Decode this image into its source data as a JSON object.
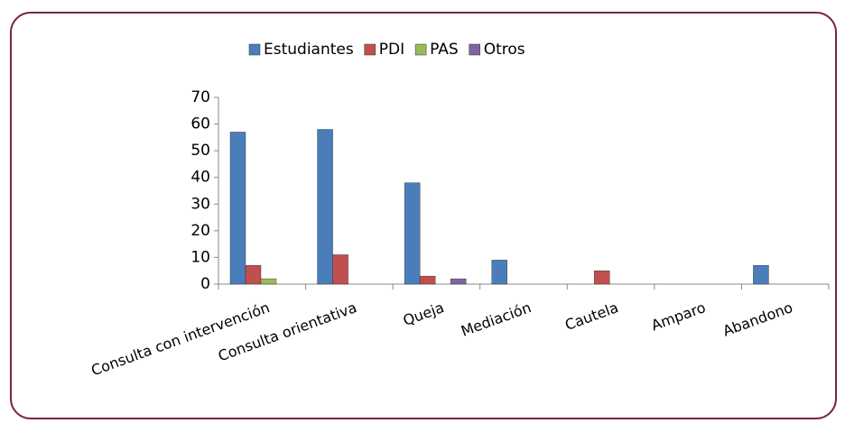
{
  "chart_data": {
    "type": "bar",
    "categories": [
      "Consulta con intervención",
      "Consulta orientativa",
      "Queja",
      "Mediación",
      "Cautela",
      "Amparo",
      "Abandono"
    ],
    "series": [
      {
        "name": "Estudiantes",
        "color": "#4a7ebb",
        "values": [
          57,
          58,
          38,
          9,
          0,
          0,
          7
        ]
      },
      {
        "name": "PDI",
        "color": "#c0504d",
        "values": [
          7,
          11,
          3,
          0,
          5,
          0,
          0
        ]
      },
      {
        "name": "PAS",
        "color": "#9bbb59",
        "values": [
          2,
          0,
          0,
          0,
          0,
          0,
          0
        ]
      },
      {
        "name": "Otros",
        "color": "#8064a2",
        "values": [
          0,
          0,
          2,
          0,
          0,
          0,
          0
        ]
      }
    ],
    "ylim": [
      0,
      70
    ],
    "yticks": [
      0,
      10,
      20,
      30,
      40,
      50,
      60,
      70
    ],
    "grid": false,
    "legend": "top"
  }
}
